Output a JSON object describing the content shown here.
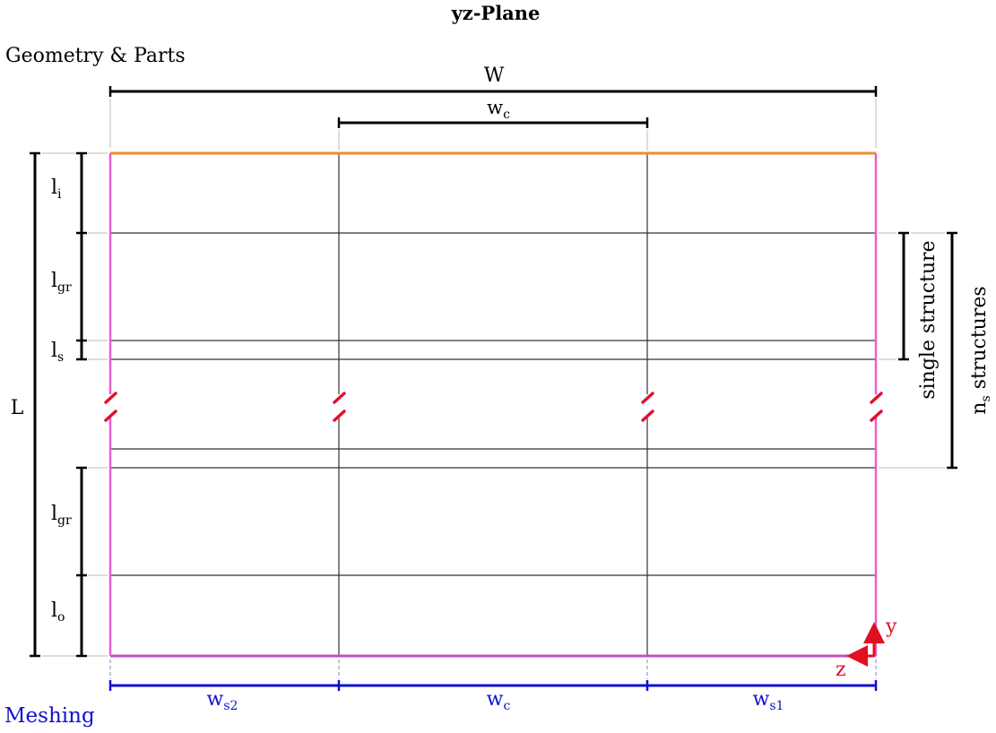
{
  "title": "yz-Plane",
  "section_geometry": "Geometry & Parts",
  "section_meshing": "Meshing",
  "dims": {
    "W": "W",
    "wc_top": {
      "base": "w",
      "sub": "c"
    },
    "L": "L",
    "li": {
      "base": "l",
      "sub": "i"
    },
    "lgr_top": {
      "base": "l",
      "sub": "gr"
    },
    "ls": {
      "base": "l",
      "sub": "s"
    },
    "lgr_bottom": {
      "base": "l",
      "sub": "gr"
    },
    "lo": {
      "base": "l",
      "sub": "o"
    },
    "single_structure": "single structure",
    "ns_structures": {
      "base": "n",
      "sub": "s",
      "rest": " structures"
    }
  },
  "axes": {
    "y": "y",
    "z": "z"
  },
  "mesh": {
    "ws2": {
      "base": "w",
      "sub": "s2"
    },
    "wc": {
      "base": "w",
      "sub": "c"
    },
    "ws1": {
      "base": "w",
      "sub": "s1"
    }
  },
  "colors": {
    "outline": "#e85fd0",
    "top_edge": "#f28c28",
    "bottom_edge": "#c050c0",
    "mesh": "#1010d0",
    "axes": "#e01020",
    "break_marks": "#e01030",
    "lines": "#222222"
  }
}
